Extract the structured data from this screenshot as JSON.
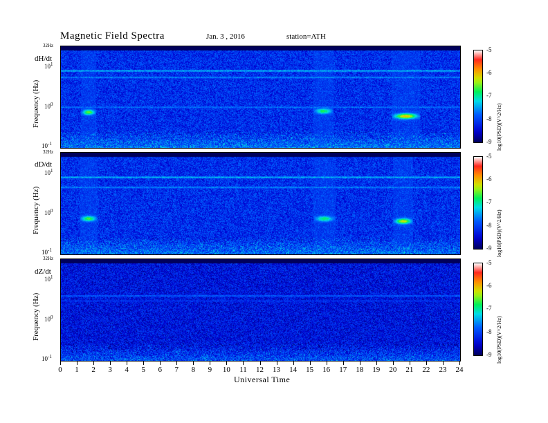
{
  "header": {
    "title": "Magnetic  Field  Spectra",
    "date": "Jan. 3 , 2016",
    "station": "station=ATH"
  },
  "chart_data": [
    {
      "type": "heatmap",
      "component": "dH/dt",
      "ylabel": "Frequency (Hz)",
      "xlabel": "Universal Time",
      "x_range": [
        0,
        24
      ],
      "y_range_hz": [
        0.1,
        32
      ],
      "y_scale": "log",
      "y_top_label": "32Hz",
      "y_ticks": [
        {
          "base": "10",
          "exp": "1"
        },
        {
          "base": "10",
          "exp": "0"
        },
        {
          "base": "10",
          "exp": "-1"
        }
      ],
      "colorbar": {
        "label": "log10(PSD)(V^2/Hz)",
        "range": [
          -9,
          -5
        ],
        "ticks": [
          "-5",
          "-6",
          "-7",
          "-8",
          "-9"
        ]
      },
      "features": [
        {
          "kind": "band",
          "freq_hz": 24,
          "intensity": -8.3
        },
        {
          "kind": "band",
          "freq_hz": 8,
          "intensity": -7.4
        },
        {
          "kind": "band",
          "freq_hz": 5.5,
          "intensity": -7.6
        },
        {
          "kind": "band",
          "freq_hz": 1.0,
          "intensity": -7.7
        },
        {
          "kind": "blob",
          "t_start": 1.2,
          "t_end": 2.1,
          "freq_hz": 0.75,
          "intensity": -6.5
        },
        {
          "kind": "blob",
          "t_start": 15.2,
          "t_end": 16.4,
          "freq_hz": 0.8,
          "intensity": -6.7
        },
        {
          "kind": "blob",
          "t_start": 19.9,
          "t_end": 21.6,
          "freq_hz": 0.6,
          "intensity": -6.0
        }
      ]
    },
    {
      "type": "heatmap",
      "component": "dD/dt",
      "ylabel": "Frequency (Hz)",
      "xlabel": "Universal Time",
      "x_range": [
        0,
        24
      ],
      "y_range_hz": [
        0.1,
        32
      ],
      "y_scale": "log",
      "y_top_label": "32Hz",
      "y_ticks": [
        {
          "base": "10",
          "exp": "1"
        },
        {
          "base": "10",
          "exp": "0"
        },
        {
          "base": "10",
          "exp": "-1"
        }
      ],
      "colorbar": {
        "label": "log10(PSD)(V^2/Hz)",
        "range": [
          -9,
          -5
        ],
        "ticks": [
          "-5",
          "-6",
          "-7",
          "-8",
          "-9"
        ]
      },
      "features": [
        {
          "kind": "band",
          "freq_hz": 24,
          "intensity": -8.3
        },
        {
          "kind": "band",
          "freq_hz": 8,
          "intensity": -7.4
        },
        {
          "kind": "band",
          "freq_hz": 4.5,
          "intensity": -7.6
        },
        {
          "kind": "blob",
          "t_start": 1.1,
          "t_end": 2.2,
          "freq_hz": 0.75,
          "intensity": -6.6
        },
        {
          "kind": "blob",
          "t_start": 15.2,
          "t_end": 16.5,
          "freq_hz": 0.75,
          "intensity": -6.8
        },
        {
          "kind": "blob",
          "t_start": 20.0,
          "t_end": 21.2,
          "freq_hz": 0.65,
          "intensity": -6.2
        }
      ]
    },
    {
      "type": "heatmap",
      "component": "dZ/dt",
      "ylabel": "Frequency (Hz)",
      "xlabel": "Universal Time",
      "x_range": [
        0,
        24
      ],
      "y_range_hz": [
        0.1,
        32
      ],
      "y_scale": "log",
      "y_top_label": "32Hz",
      "y_ticks": [
        {
          "base": "10",
          "exp": "1"
        },
        {
          "base": "10",
          "exp": "0"
        },
        {
          "base": "10",
          "exp": "-1"
        }
      ],
      "colorbar": {
        "label": "log10(PSD)(V^2/Hz)",
        "range": [
          -9,
          -5
        ],
        "ticks": [
          "-5",
          "-6",
          "-7",
          "-8",
          "-9"
        ]
      },
      "features": [
        {
          "kind": "band",
          "freq_hz": 4.0,
          "intensity": -7.8
        },
        {
          "kind": "band",
          "freq_hz": 3.0,
          "intensity": -8.1
        }
      ]
    }
  ],
  "x_axis": {
    "label": "Universal Time",
    "ticks": [
      "0",
      "1",
      "2",
      "3",
      "4",
      "5",
      "6",
      "7",
      "8",
      "9",
      "10",
      "11",
      "12",
      "13",
      "14",
      "15",
      "16",
      "17",
      "18",
      "19",
      "20",
      "21",
      "22",
      "23",
      "24"
    ]
  },
  "colors": {
    "background": "#ffffff",
    "low": "#000060",
    "high": "#ff3030"
  }
}
